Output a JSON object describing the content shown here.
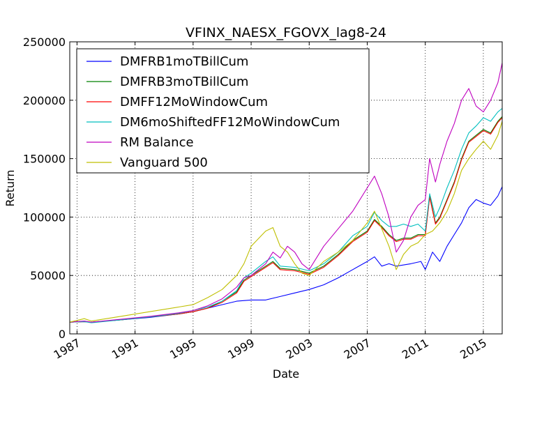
{
  "chart_data": {
    "type": "line",
    "title": "VFINX_NAESX_FGOVX_lag8-24",
    "xlabel": "Date",
    "ylabel": "Return",
    "xlim": [
      1986.5,
      2016.3
    ],
    "ylim": [
      0,
      250000
    ],
    "xticks": [
      1987,
      1991,
      1995,
      1999,
      2003,
      2007,
      2011,
      2015
    ],
    "yticks": [
      0,
      50000,
      100000,
      150000,
      200000,
      250000
    ],
    "grid": true,
    "legend": "top-left",
    "series": [
      {
        "name": "DMFRB1moTBillCum",
        "color": "#0000ff",
        "x": [
          1986.5,
          1987.5,
          1988.0,
          1990.0,
          1992.0,
          1994.0,
          1995.0,
          1996.0,
          1997.0,
          1998.0,
          1999.0,
          2000.0,
          2001.0,
          2002.0,
          2003.0,
          2004.0,
          2005.0,
          2006.0,
          2007.0,
          2007.5,
          2008.0,
          2008.5,
          2009.0,
          2010.0,
          2010.7,
          2011.0,
          2011.5,
          2012.0,
          2012.5,
          2013.0,
          2013.5,
          2014.0,
          2014.5,
          2015.0,
          2015.5,
          2016.0,
          2016.3
        ],
        "y": [
          10000,
          10500,
          10000,
          12000,
          14000,
          17000,
          19000,
          22000,
          25000,
          28000,
          29000,
          29000,
          32000,
          35000,
          38000,
          42000,
          48000,
          55000,
          62000,
          66000,
          58000,
          60000,
          58000,
          60000,
          62000,
          55000,
          70000,
          62000,
          75000,
          85000,
          95000,
          108000,
          115000,
          112000,
          110000,
          118000,
          126000
        ]
      },
      {
        "name": "DMFRB3moTBillCum",
        "color": "#008000",
        "x": [
          1986.5,
          1987.5,
          1988.0,
          1990.0,
          1992.0,
          1994.0,
          1995.0,
          1996.0,
          1997.0,
          1998.0,
          1998.5,
          1999.0,
          2000.0,
          2000.5,
          2001.0,
          2002.0,
          2003.0,
          2004.0,
          2005.0,
          2006.0,
          2007.0,
          2007.5,
          2008.0,
          2008.5,
          2009.0,
          2009.5,
          2010.0,
          2010.5,
          2011.0,
          2011.3,
          2011.7,
          2012.0,
          2012.5,
          2013.0,
          2013.5,
          2014.0,
          2014.5,
          2015.0,
          2015.5,
          2016.0,
          2016.3
        ],
        "y": [
          10000,
          10500,
          10000,
          12000,
          14500,
          17000,
          19000,
          22000,
          28000,
          36000,
          46000,
          50000,
          58000,
          62000,
          56000,
          55000,
          52000,
          58000,
          68000,
          80000,
          88000,
          98000,
          92000,
          85000,
          80000,
          82000,
          82000,
          85000,
          85000,
          118000,
          95000,
          100000,
          115000,
          130000,
          150000,
          165000,
          170000,
          175000,
          172000,
          182000,
          186000
        ]
      },
      {
        "name": "DMFF12MoWindowCum",
        "color": "#ff0000",
        "x": [
          1986.5,
          1987.5,
          1988.0,
          1990.0,
          1992.0,
          1994.0,
          1995.0,
          1996.0,
          1997.0,
          1998.0,
          1998.5,
          1999.0,
          2000.0,
          2000.5,
          2001.0,
          2002.0,
          2003.0,
          2004.0,
          2005.0,
          2006.0,
          2007.0,
          2007.5,
          2008.0,
          2008.5,
          2009.0,
          2009.5,
          2010.0,
          2010.5,
          2011.0,
          2011.3,
          2011.7,
          2012.0,
          2012.5,
          2013.0,
          2013.5,
          2014.0,
          2014.5,
          2015.0,
          2015.5,
          2016.0,
          2016.3
        ],
        "y": [
          10000,
          10500,
          10000,
          12000,
          14500,
          17000,
          19000,
          22000,
          27000,
          35000,
          45000,
          49000,
          57000,
          61000,
          55000,
          54000,
          51000,
          57000,
          67000,
          79000,
          87000,
          97000,
          91000,
          84000,
          79000,
          81000,
          81000,
          84000,
          84000,
          117000,
          94000,
          99000,
          114000,
          129000,
          149000,
          164000,
          169000,
          174000,
          171000,
          181000,
          185000
        ]
      },
      {
        "name": "DM6moShiftedFF12MoWindowCum",
        "color": "#00bfbf",
        "x": [
          1986.5,
          1987.5,
          1988.0,
          1990.0,
          1992.0,
          1994.0,
          1995.0,
          1996.0,
          1997.0,
          1998.0,
          1998.5,
          1999.0,
          2000.0,
          2000.5,
          2001.0,
          2002.0,
          2003.0,
          2004.0,
          2005.0,
          2006.0,
          2007.0,
          2007.5,
          2008.0,
          2008.5,
          2009.0,
          2009.5,
          2010.0,
          2010.5,
          2011.0,
          2011.3,
          2011.7,
          2012.0,
          2012.5,
          2013.0,
          2013.5,
          2014.0,
          2014.5,
          2015.0,
          2015.5,
          2016.0,
          2016.3
        ],
        "y": [
          10000,
          10500,
          9500,
          12000,
          14500,
          17500,
          20000,
          23000,
          28000,
          37000,
          48000,
          52000,
          62000,
          66000,
          58000,
          57000,
          54000,
          60000,
          70000,
          84000,
          92000,
          104000,
          97000,
          92000,
          92000,
          94000,
          92000,
          94000,
          88000,
          120000,
          100000,
          108000,
          125000,
          140000,
          158000,
          172000,
          178000,
          185000,
          182000,
          190000,
          193000
        ]
      },
      {
        "name": "RM Balance",
        "color": "#bf00bf",
        "x": [
          1986.5,
          1987.5,
          1988.0,
          1990.0,
          1992.0,
          1994.0,
          1995.0,
          1996.0,
          1997.0,
          1998.0,
          1998.5,
          1999.0,
          2000.0,
          2000.5,
          2001.0,
          2001.5,
          2002.0,
          2002.5,
          2003.0,
          2004.0,
          2005.0,
          2006.0,
          2007.0,
          2007.5,
          2008.0,
          2008.5,
          2009.0,
          2009.5,
          2010.0,
          2010.5,
          2011.0,
          2011.3,
          2011.7,
          2012.0,
          2012.5,
          2013.0,
          2013.5,
          2014.0,
          2014.5,
          2015.0,
          2015.5,
          2016.0,
          2016.3
        ],
        "y": [
          10000,
          11000,
          10000,
          12500,
          15000,
          18000,
          20000,
          24000,
          30000,
          40000,
          48000,
          50000,
          60000,
          70000,
          65000,
          75000,
          70000,
          60000,
          55000,
          75000,
          90000,
          105000,
          125000,
          135000,
          120000,
          100000,
          70000,
          80000,
          100000,
          110000,
          115000,
          150000,
          130000,
          145000,
          165000,
          180000,
          200000,
          210000,
          195000,
          190000,
          200000,
          215000,
          232000
        ]
      },
      {
        "name": "Vanguard 500",
        "color": "#bfbf00",
        "x": [
          1986.5,
          1987.5,
          1988.0,
          1990.0,
          1992.0,
          1994.0,
          1995.0,
          1996.0,
          1997.0,
          1998.0,
          1998.5,
          1999.0,
          2000.0,
          2000.5,
          2001.0,
          2001.5,
          2002.0,
          2002.5,
          2003.0,
          2004.0,
          2005.0,
          2006.0,
          2007.0,
          2007.5,
          2008.0,
          2008.5,
          2009.0,
          2009.5,
          2010.0,
          2010.5,
          2011.0,
          2011.5,
          2012.0,
          2012.5,
          2013.0,
          2013.5,
          2014.0,
          2014.5,
          2015.0,
          2015.5,
          2016.0,
          2016.3
        ],
        "y": [
          10000,
          13000,
          11000,
          15000,
          19000,
          23000,
          25000,
          31000,
          38000,
          50000,
          60000,
          75000,
          88000,
          91000,
          75000,
          70000,
          60000,
          52000,
          50000,
          62000,
          70000,
          80000,
          95000,
          105000,
          90000,
          75000,
          55000,
          68000,
          75000,
          78000,
          85000,
          88000,
          95000,
          105000,
          120000,
          140000,
          150000,
          158000,
          165000,
          158000,
          170000,
          182000
        ]
      }
    ]
  }
}
